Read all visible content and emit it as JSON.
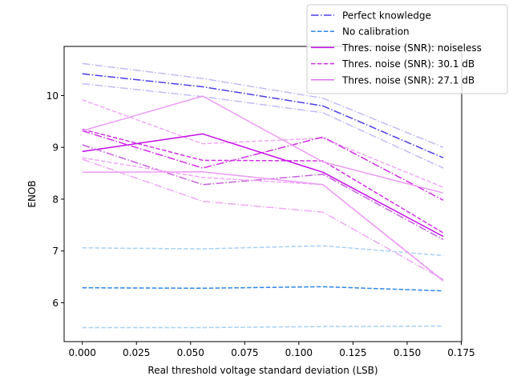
{
  "chart_data": {
    "type": "line",
    "xlabel": "Real threshold voltage standard deviation (LSB)",
    "ylabel": "ENOB",
    "xlim": [
      -0.0084,
      0.1752
    ],
    "ylim": [
      5.25,
      10.95
    ],
    "x_ticks": [
      0.0,
      0.025,
      0.05,
      0.075,
      0.1,
      0.125,
      0.15,
      0.175
    ],
    "x_tick_labels": [
      "0.000",
      "0.025",
      "0.050",
      "0.075",
      "0.100",
      "0.125",
      "0.150",
      "0.175"
    ],
    "y_ticks": [
      6,
      7,
      8,
      9,
      10
    ],
    "y_tick_labels": [
      "6",
      "7",
      "8",
      "9",
      "10"
    ],
    "grid": false,
    "legend_position": "top-right",
    "legend": [
      {
        "label": "Perfect knowledge",
        "color": "#4b3ee8",
        "dash": "dashdot"
      },
      {
        "label": "No calibration",
        "color": "#2f86e8",
        "dash": "dashed"
      },
      {
        "label": "Thres. noise (SNR): noiseless",
        "color": "#c50ee8",
        "dash": "solid"
      },
      {
        "label": "Thres. noise (SNR): 30.1 dB",
        "color": "#d22fe8",
        "dash": "dashed"
      },
      {
        "label": "Thres. noise (SNR): 27.1 dB",
        "color": "#df6ef0",
        "dash": "solid"
      }
    ],
    "series": [
      {
        "color": "#c0bcf7",
        "dash": "dashdot",
        "x": [
          0.0,
          0.0556,
          0.1111,
          0.1667
        ],
        "y": [
          10.62,
          10.33,
          9.95,
          9.0
        ]
      },
      {
        "color": "#4b3ee8",
        "dash": "dashdot",
        "x": [
          0.0,
          0.0556,
          0.1111,
          0.1667
        ],
        "y": [
          10.42,
          10.17,
          9.8,
          8.8
        ]
      },
      {
        "color": "#c0bcf7",
        "dash": "dashdot",
        "x": [
          0.0,
          0.0556,
          0.1111,
          0.1667
        ],
        "y": [
          10.23,
          9.98,
          9.67,
          8.6
        ]
      },
      {
        "color": "#a9d0f6",
        "dash": "dashed",
        "x": [
          0.0,
          0.0556,
          0.1111,
          0.1667
        ],
        "y": [
          7.06,
          7.04,
          7.1,
          6.91
        ]
      },
      {
        "color": "#2f86e8",
        "dash": "dashed",
        "x": [
          0.0,
          0.0556,
          0.1111,
          0.1667
        ],
        "y": [
          6.29,
          6.28,
          6.31,
          6.23
        ]
      },
      {
        "color": "#a9d0f6",
        "dash": "dashed",
        "x": [
          0.0,
          0.0556,
          0.1111,
          0.1667
        ],
        "y": [
          5.52,
          5.52,
          5.54,
          5.55
        ]
      },
      {
        "color": "#f0a8f7",
        "dash": "dashed",
        "x": [
          0.0,
          0.0556,
          0.1111,
          0.1667
        ],
        "y": [
          9.92,
          9.07,
          9.18,
          8.23
        ]
      },
      {
        "color": "#d22fe8",
        "dash": "dashed",
        "x": [
          0.0,
          0.0556,
          0.1111,
          0.1667
        ],
        "y": [
          9.35,
          8.75,
          8.74,
          7.35
        ]
      },
      {
        "color": "#d22fe8",
        "dash": "dashdot",
        "x": [
          0.0,
          0.0556,
          0.1111,
          0.1667
        ],
        "y": [
          9.32,
          8.6,
          9.2,
          7.98
        ]
      },
      {
        "color": "#c50ee8",
        "dash": "solid",
        "x": [
          0.0,
          0.0556,
          0.1111,
          0.1667
        ],
        "y": [
          8.92,
          9.26,
          8.52,
          7.28
        ]
      },
      {
        "color": "#c662e0",
        "dash": "dashdot",
        "x": [
          0.0,
          0.0556,
          0.1111,
          0.1667
        ],
        "y": [
          9.05,
          8.28,
          8.48,
          7.22
        ]
      },
      {
        "color": "#f0a8f7",
        "dash": "dashed",
        "x": [
          0.0,
          0.0556,
          0.1111,
          0.1667
        ],
        "y": [
          8.8,
          8.42,
          8.28,
          6.43
        ]
      },
      {
        "color": "#f0a8f7",
        "dash": "dashdot",
        "x": [
          0.0,
          0.0556,
          0.1111,
          0.1667
        ],
        "y": [
          8.77,
          7.96,
          7.75,
          6.45
        ]
      },
      {
        "color": "#eb9cf4",
        "dash": "solid",
        "x": [
          0.0,
          0.0556,
          0.1111,
          0.1667
        ],
        "y": [
          9.32,
          9.99,
          8.72,
          8.12
        ]
      },
      {
        "color": "#eb9cf4",
        "dash": "solid",
        "x": [
          0.0,
          0.0556,
          0.1111,
          0.1667
        ],
        "y": [
          8.52,
          8.53,
          8.28,
          6.42
        ]
      }
    ]
  }
}
